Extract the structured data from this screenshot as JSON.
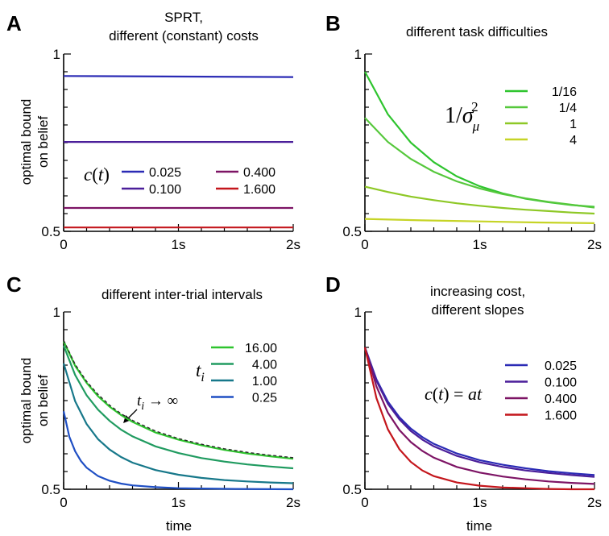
{
  "chart_data": [
    {
      "type": "line",
      "panel": "A",
      "title": [
        "SPRT,",
        "different (constant) costs"
      ],
      "ylabel": [
        "optimal bound",
        "on belief"
      ],
      "xlabel": "",
      "xlim": [
        0,
        2
      ],
      "ylim": [
        0.5,
        1
      ],
      "x_ticks": [
        "0",
        "1s",
        "2s"
      ],
      "y_ticks": [
        "0.5",
        "1"
      ],
      "legend_symbol": "c(t)",
      "series": [
        {
          "name": "0.025",
          "color": "#2b2bb5",
          "x": [
            0,
            2
          ],
          "y": [
            0.938,
            0.935
          ]
        },
        {
          "name": "0.100",
          "color": "#4b1f9a",
          "x": [
            0,
            2
          ],
          "y": [
            0.752,
            0.752
          ]
        },
        {
          "name": "0.400",
          "color": "#7d1465",
          "x": [
            0,
            2
          ],
          "y": [
            0.566,
            0.566
          ]
        },
        {
          "name": "1.600",
          "color": "#c4161c",
          "x": [
            0,
            2
          ],
          "y": [
            0.511,
            0.511
          ]
        }
      ]
    },
    {
      "type": "line",
      "panel": "B",
      "title": [
        "different task difficulties"
      ],
      "ylabel": [],
      "xlabel": "",
      "xlim": [
        0,
        2
      ],
      "ylim": [
        0.5,
        1
      ],
      "x_ticks": [
        "0",
        "1s",
        "2s"
      ],
      "y_ticks": [
        "0.5",
        "1"
      ],
      "legend_symbol": "1/σμ²",
      "series": [
        {
          "name": "1/16",
          "color": "#2ec42e",
          "x": [
            0,
            0.2,
            0.4,
            0.6,
            0.8,
            1.0,
            1.2,
            1.4,
            1.6,
            1.8,
            2.0
          ],
          "y": [
            0.95,
            0.83,
            0.75,
            0.695,
            0.655,
            0.627,
            0.607,
            0.592,
            0.582,
            0.574,
            0.569
          ]
        },
        {
          "name": "1/4",
          "color": "#56c83c",
          "x": [
            0,
            0.2,
            0.4,
            0.6,
            0.8,
            1.0,
            1.2,
            1.4,
            1.6,
            1.8,
            2.0
          ],
          "y": [
            0.82,
            0.752,
            0.704,
            0.668,
            0.641,
            0.621,
            0.605,
            0.593,
            0.583,
            0.575,
            0.567
          ]
        },
        {
          "name": "1",
          "color": "#8ec826",
          "x": [
            0,
            0.2,
            0.4,
            0.6,
            0.8,
            1.0,
            1.2,
            1.4,
            1.6,
            1.8,
            2.0
          ],
          "y": [
            0.626,
            0.611,
            0.598,
            0.588,
            0.579,
            0.572,
            0.566,
            0.561,
            0.557,
            0.553,
            0.55
          ]
        },
        {
          "name": "4",
          "color": "#c6d426",
          "x": [
            0,
            0.5,
            1.0,
            1.5,
            2.0
          ],
          "y": [
            0.535,
            0.531,
            0.528,
            0.525,
            0.523
          ]
        }
      ]
    },
    {
      "type": "line",
      "panel": "C",
      "title": [
        "different inter-trial intervals"
      ],
      "ylabel": [
        "optimal bound",
        "on belief"
      ],
      "xlabel": "time",
      "xlim": [
        0,
        2
      ],
      "ylim": [
        0.5,
        1
      ],
      "x_ticks": [
        "0",
        "1s",
        "2s"
      ],
      "y_ticks": [
        "0.5",
        "1"
      ],
      "legend_symbol": "t_i",
      "annotation": "t_i → ∞",
      "series": [
        {
          "name": "16.00",
          "color": "#2ec42e",
          "x": [
            0,
            0.1,
            0.2,
            0.3,
            0.4,
            0.5,
            0.6,
            0.8,
            1.0,
            1.2,
            1.4,
            1.6,
            1.8,
            2.0
          ],
          "y": [
            0.917,
            0.848,
            0.8,
            0.762,
            0.733,
            0.709,
            0.69,
            0.66,
            0.64,
            0.624,
            0.611,
            0.601,
            0.593,
            0.586
          ]
        },
        {
          "name": "4.00",
          "color": "#209b60",
          "x": [
            0,
            0.1,
            0.2,
            0.3,
            0.4,
            0.5,
            0.6,
            0.8,
            1.0,
            1.2,
            1.4,
            1.6,
            1.8,
            2.0
          ],
          "y": [
            0.905,
            0.822,
            0.765,
            0.724,
            0.693,
            0.668,
            0.649,
            0.621,
            0.602,
            0.588,
            0.578,
            0.57,
            0.564,
            0.559
          ]
        },
        {
          "name": "1.00",
          "color": "#17788a",
          "x": [
            0,
            0.1,
            0.2,
            0.3,
            0.4,
            0.5,
            0.6,
            0.8,
            1.0,
            1.2,
            1.4,
            1.6,
            1.8,
            2.0
          ],
          "y": [
            0.855,
            0.748,
            0.684,
            0.641,
            0.612,
            0.591,
            0.575,
            0.554,
            0.541,
            0.532,
            0.526,
            0.522,
            0.519,
            0.517
          ]
        },
        {
          "name": "0.25",
          "color": "#1f4fc4",
          "x": [
            0,
            0.05,
            0.1,
            0.15,
            0.2,
            0.3,
            0.4,
            0.5,
            0.6,
            0.8,
            1.0,
            1.2,
            1.5,
            2.0
          ],
          "y": [
            0.72,
            0.648,
            0.607,
            0.58,
            0.561,
            0.537,
            0.524,
            0.516,
            0.511,
            0.506,
            0.503,
            0.502,
            0.501,
            0.5
          ]
        }
      ],
      "asymptote": {
        "color": "#2a2a2a",
        "x": [
          0,
          0.1,
          0.2,
          0.3,
          0.4,
          0.5,
          0.6,
          0.8,
          1.0,
          1.2,
          1.4,
          1.6,
          1.8,
          2.0
        ],
        "y": [
          0.92,
          0.852,
          0.804,
          0.767,
          0.737,
          0.713,
          0.694,
          0.664,
          0.643,
          0.627,
          0.614,
          0.604,
          0.596,
          0.589
        ]
      }
    },
    {
      "type": "line",
      "panel": "D",
      "title": [
        "increasing cost,",
        "different slopes"
      ],
      "ylabel": [],
      "xlabel": "time",
      "xlim": [
        0,
        2
      ],
      "ylim": [
        0.5,
        1
      ],
      "x_ticks": [
        "0",
        "1s",
        "2s"
      ],
      "y_ticks": [
        "0.5",
        "1"
      ],
      "legend_symbol": "c(t) = at",
      "series": [
        {
          "name": "0.025",
          "color": "#2b2bb5",
          "x": [
            0,
            0.1,
            0.2,
            0.3,
            0.4,
            0.5,
            0.6,
            0.8,
            1.0,
            1.2,
            1.4,
            1.6,
            1.8,
            2.0
          ],
          "y": [
            0.9,
            0.81,
            0.747,
            0.703,
            0.671,
            0.647,
            0.628,
            0.601,
            0.582,
            0.569,
            0.559,
            0.551,
            0.545,
            0.54
          ]
        },
        {
          "name": "0.100",
          "color": "#4b1f9a",
          "x": [
            0,
            0.1,
            0.2,
            0.3,
            0.4,
            0.5,
            0.6,
            0.8,
            1.0,
            1.2,
            1.4,
            1.6,
            1.8,
            2.0
          ],
          "y": [
            0.9,
            0.806,
            0.741,
            0.697,
            0.664,
            0.64,
            0.621,
            0.594,
            0.576,
            0.563,
            0.553,
            0.546,
            0.54,
            0.535
          ]
        },
        {
          "name": "0.400",
          "color": "#7d1465",
          "x": [
            0,
            0.1,
            0.2,
            0.3,
            0.4,
            0.5,
            0.6,
            0.8,
            1.0,
            1.2,
            1.4,
            1.6,
            1.8,
            2.0
          ],
          "y": [
            0.9,
            0.79,
            0.716,
            0.667,
            0.633,
            0.608,
            0.589,
            0.563,
            0.547,
            0.536,
            0.528,
            0.522,
            0.518,
            0.515
          ]
        },
        {
          "name": "1.600",
          "color": "#c4161c",
          "x": [
            0,
            0.1,
            0.2,
            0.3,
            0.4,
            0.5,
            0.6,
            0.8,
            1.0,
            1.2,
            1.4,
            1.6,
            1.8,
            2.0
          ],
          "y": [
            0.9,
            0.757,
            0.669,
            0.613,
            0.577,
            0.553,
            0.537,
            0.519,
            0.51,
            0.505,
            0.503,
            0.501,
            0.5,
            0.5
          ]
        }
      ]
    }
  ]
}
